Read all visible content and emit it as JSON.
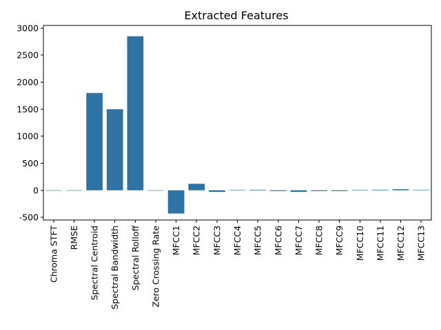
{
  "chart_data": {
    "type": "bar",
    "title": "Extracted Features",
    "xlabel": "",
    "ylabel": "",
    "categories": [
      "Chroma STFT",
      "RMSE",
      "Spectral Centroid",
      "Spectral Bandwidth",
      "Spectral Rolloff",
      "Zero Crossing Rate",
      "MFCC1",
      "MFCC2",
      "MFCC3",
      "MFCC4",
      "MFCC5",
      "MFCC6",
      "MFCC7",
      "MFCC8",
      "MFCC9",
      "MFCC10",
      "MFCC11",
      "MFCC12",
      "MFCC13"
    ],
    "values": [
      0.4,
      0.1,
      1800,
      1500,
      2850,
      0.1,
      -430,
      120,
      -30,
      5,
      10,
      -15,
      -30,
      -15,
      -15,
      5,
      10,
      20,
      5
    ],
    "ylim": [
      -550,
      3050
    ],
    "yticks": [
      -500,
      0,
      500,
      1000,
      1500,
      2000,
      2500,
      3000
    ],
    "bar_color": "#2e73a4",
    "grid": false,
    "legend": "none"
  }
}
